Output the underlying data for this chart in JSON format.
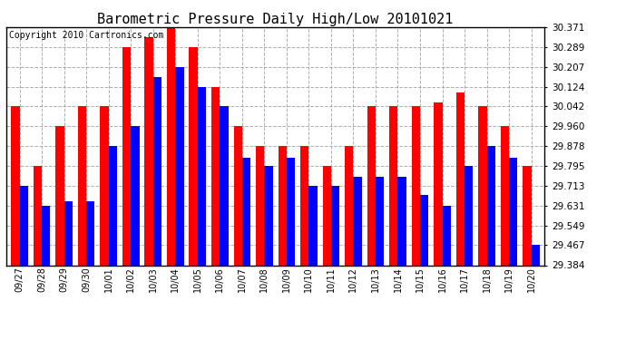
{
  "title": "Barometric Pressure Daily High/Low 20101021",
  "copyright": "Copyright 2010 Cartronics.com",
  "dates": [
    "09/27",
    "09/28",
    "09/29",
    "09/30",
    "10/01",
    "10/02",
    "10/03",
    "10/04",
    "10/05",
    "10/06",
    "10/07",
    "10/08",
    "10/09",
    "10/10",
    "10/11",
    "10/12",
    "10/13",
    "10/14",
    "10/15",
    "10/16",
    "10/17",
    "10/18",
    "10/19",
    "10/20"
  ],
  "highs": [
    30.042,
    29.795,
    29.96,
    30.042,
    30.042,
    30.289,
    30.33,
    30.371,
    30.289,
    30.124,
    29.96,
    29.878,
    29.878,
    29.878,
    29.795,
    29.878,
    30.042,
    30.042,
    30.042,
    30.06,
    30.1,
    30.042,
    29.96,
    29.795
  ],
  "lows": [
    29.713,
    29.631,
    29.649,
    29.649,
    29.878,
    29.96,
    30.165,
    30.207,
    30.124,
    30.042,
    29.831,
    29.795,
    29.831,
    29.713,
    29.713,
    29.749,
    29.749,
    29.749,
    29.676,
    29.631,
    29.795,
    29.878,
    29.831,
    29.467
  ],
  "ylim_min": 29.384,
  "ylim_max": 30.371,
  "yticks": [
    29.384,
    29.467,
    29.549,
    29.631,
    29.713,
    29.795,
    29.878,
    29.96,
    30.042,
    30.124,
    30.207,
    30.289,
    30.371
  ],
  "high_color": "#ff0000",
  "low_color": "#0000ff",
  "bg_color": "#ffffff",
  "plot_bg_color": "#ffffff",
  "grid_color": "#999999",
  "title_fontsize": 11,
  "copyright_fontsize": 7,
  "bar_width": 0.38
}
